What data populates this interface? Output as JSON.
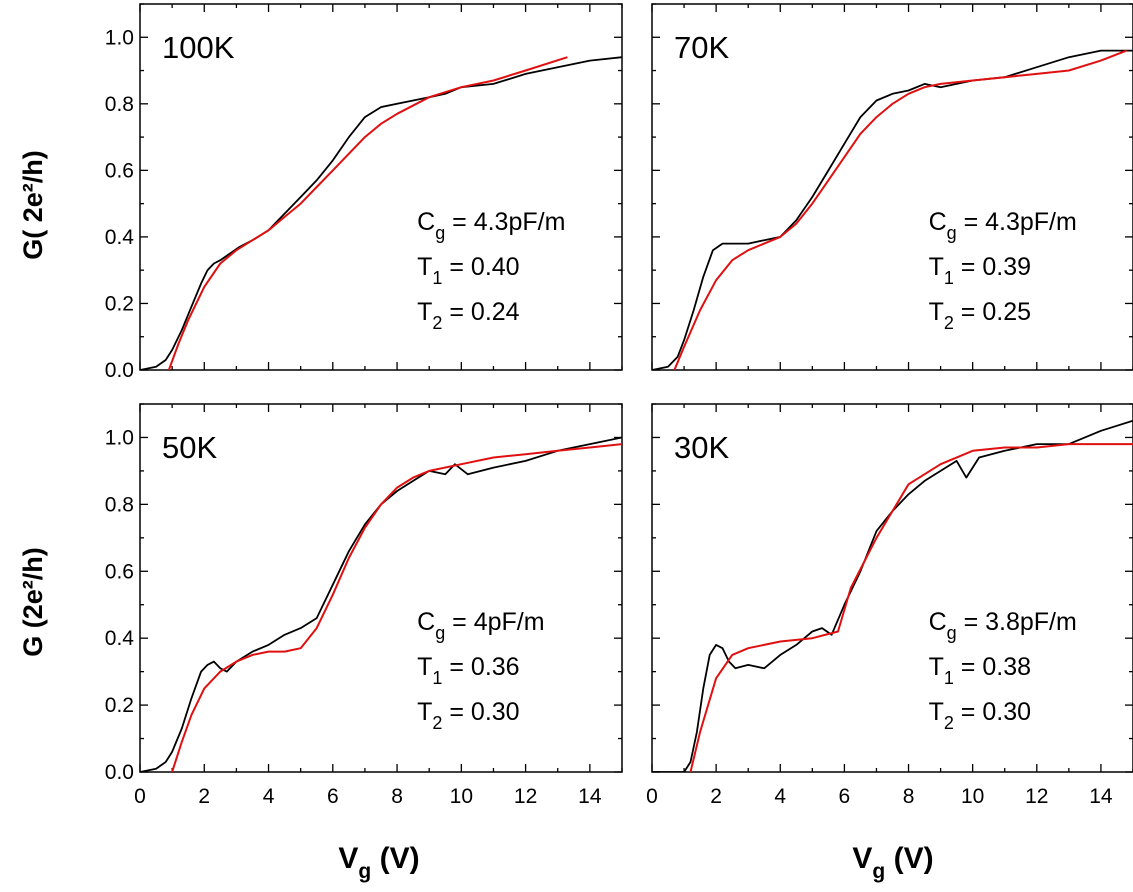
{
  "figure": {
    "ylabel_top": "G( 2e²/h)",
    "ylabel_bottom": "G (2e²/h)",
    "xlabel_main": "V",
    "xlabel_sub": "g",
    "xlabel_unit": " (V)"
  },
  "colors": {
    "data": "#000000",
    "fit": "#e01010",
    "frame": "#000000"
  },
  "chart_data": [
    {
      "type": "line",
      "panel": "top-left",
      "label": "100K",
      "xlim": [
        0,
        15
      ],
      "ylim": [
        0,
        1.1
      ],
      "yticks": [
        "0.0",
        "0.2",
        "0.4",
        "0.6",
        "0.8",
        "1.0"
      ],
      "xticks": [],
      "annotations": [
        {
          "main": "C",
          "sub": "g",
          "rest": " = 4.3pF/m"
        },
        {
          "main": "T",
          "sub": "1",
          "rest": " = 0.40"
        },
        {
          "main": "T",
          "sub": "2",
          "rest": " = 0.24"
        }
      ],
      "series": [
        {
          "role": "data",
          "x": [
            0,
            0.5,
            0.8,
            1.0,
            1.3,
            1.6,
            1.9,
            2.1,
            2.3,
            2.5,
            2.8,
            3.1,
            3.5,
            4.0,
            4.5,
            5.0,
            5.5,
            6.0,
            6.5,
            7.0,
            7.5,
            8.0,
            8.5,
            9.0,
            9.5,
            10.0,
            11.0,
            12.0,
            13.0,
            14.0,
            15.0
          ],
          "y": [
            0.0,
            0.01,
            0.03,
            0.06,
            0.12,
            0.19,
            0.26,
            0.3,
            0.32,
            0.33,
            0.35,
            0.37,
            0.39,
            0.42,
            0.47,
            0.52,
            0.57,
            0.63,
            0.7,
            0.76,
            0.79,
            0.8,
            0.81,
            0.82,
            0.83,
            0.85,
            0.86,
            0.89,
            0.91,
            0.93,
            0.94
          ]
        },
        {
          "role": "fit",
          "x": [
            0.9,
            1.2,
            1.5,
            2.0,
            2.5,
            3.0,
            3.5,
            4.0,
            4.5,
            5.0,
            5.5,
            6.0,
            6.5,
            7.0,
            7.5,
            8.0,
            9.0,
            10.0,
            11.0,
            12.0,
            13.3
          ],
          "y": [
            0.0,
            0.08,
            0.15,
            0.25,
            0.32,
            0.36,
            0.39,
            0.42,
            0.46,
            0.5,
            0.55,
            0.6,
            0.65,
            0.7,
            0.74,
            0.77,
            0.82,
            0.85,
            0.87,
            0.9,
            0.94
          ]
        }
      ]
    },
    {
      "type": "line",
      "panel": "top-right",
      "label": "70K",
      "xlim": [
        0,
        15
      ],
      "ylim": [
        0,
        1.1
      ],
      "yticks": [],
      "xticks": [],
      "annotations": [
        {
          "main": "C",
          "sub": "g",
          "rest": " = 4.3pF/m"
        },
        {
          "main": "T",
          "sub": "1",
          "rest": " = 0.39"
        },
        {
          "main": "T",
          "sub": "2",
          "rest": " = 0.25"
        }
      ],
      "series": [
        {
          "role": "data",
          "x": [
            0,
            0.5,
            0.8,
            1.0,
            1.3,
            1.6,
            1.9,
            2.2,
            2.5,
            3.0,
            3.5,
            4.0,
            4.5,
            5.0,
            5.5,
            6.0,
            6.5,
            7.0,
            7.5,
            8.0,
            8.5,
            9.0,
            9.5,
            10.0,
            11.0,
            12.0,
            13.0,
            14.0,
            15.0
          ],
          "y": [
            0.0,
            0.01,
            0.04,
            0.09,
            0.18,
            0.28,
            0.36,
            0.38,
            0.38,
            0.38,
            0.39,
            0.4,
            0.45,
            0.52,
            0.6,
            0.68,
            0.76,
            0.81,
            0.83,
            0.84,
            0.86,
            0.85,
            0.86,
            0.87,
            0.88,
            0.91,
            0.94,
            0.96,
            0.96
          ]
        },
        {
          "role": "fit",
          "x": [
            0.7,
            1.0,
            1.5,
            2.0,
            2.5,
            3.0,
            3.5,
            4.0,
            4.5,
            5.0,
            5.5,
            6.0,
            6.5,
            7.0,
            7.5,
            8.0,
            8.5,
            9.0,
            10.0,
            11.0,
            12.0,
            13.0,
            14.0,
            14.8
          ],
          "y": [
            0.0,
            0.07,
            0.18,
            0.27,
            0.33,
            0.36,
            0.38,
            0.4,
            0.44,
            0.5,
            0.57,
            0.64,
            0.71,
            0.76,
            0.8,
            0.83,
            0.85,
            0.86,
            0.87,
            0.88,
            0.89,
            0.9,
            0.93,
            0.96
          ]
        }
      ]
    },
    {
      "type": "line",
      "panel": "bottom-left",
      "label": "50K",
      "xlim": [
        0,
        15
      ],
      "ylim": [
        0,
        1.1
      ],
      "yticks": [
        "0.0",
        "0.2",
        "0.4",
        "0.6",
        "0.8",
        "1.0"
      ],
      "xticks": [
        "0",
        "2",
        "4",
        "6",
        "8",
        "10",
        "12",
        "14"
      ],
      "annotations": [
        {
          "main": "C",
          "sub": "g",
          "rest": " = 4pF/m"
        },
        {
          "main": "T",
          "sub": "1",
          "rest": " = 0.36"
        },
        {
          "main": "T",
          "sub": "2",
          "rest": " = 0.30"
        }
      ],
      "series": [
        {
          "role": "data",
          "x": [
            0,
            0.5,
            0.8,
            1.0,
            1.3,
            1.6,
            1.9,
            2.1,
            2.3,
            2.5,
            2.7,
            3.0,
            3.5,
            4.0,
            4.5,
            5.0,
            5.5,
            6.0,
            6.5,
            7.0,
            7.5,
            8.0,
            8.5,
            9.0,
            9.5,
            9.8,
            10.2,
            11.0,
            12.0,
            13.0,
            14.0,
            15.0
          ],
          "y": [
            0.0,
            0.01,
            0.03,
            0.06,
            0.13,
            0.22,
            0.3,
            0.32,
            0.33,
            0.31,
            0.3,
            0.33,
            0.36,
            0.38,
            0.41,
            0.43,
            0.46,
            0.56,
            0.66,
            0.74,
            0.8,
            0.84,
            0.87,
            0.9,
            0.89,
            0.92,
            0.89,
            0.91,
            0.93,
            0.96,
            0.98,
            1.0
          ]
        },
        {
          "role": "fit",
          "x": [
            1.0,
            1.3,
            1.6,
            2.0,
            2.5,
            3.0,
            3.5,
            4.0,
            4.5,
            5.0,
            5.5,
            6.0,
            6.5,
            7.0,
            7.5,
            8.0,
            8.5,
            9.0,
            10.0,
            11.0,
            12.0,
            13.0,
            14.0,
            15.0
          ],
          "y": [
            0.0,
            0.09,
            0.17,
            0.25,
            0.3,
            0.33,
            0.35,
            0.36,
            0.36,
            0.37,
            0.43,
            0.53,
            0.64,
            0.73,
            0.8,
            0.85,
            0.88,
            0.9,
            0.92,
            0.94,
            0.95,
            0.96,
            0.97,
            0.98
          ]
        }
      ]
    },
    {
      "type": "line",
      "panel": "bottom-right",
      "label": "30K",
      "xlim": [
        0,
        15
      ],
      "ylim": [
        0,
        1.1
      ],
      "yticks": [],
      "xticks": [
        "0",
        "2",
        "4",
        "6",
        "8",
        "10",
        "12",
        "14"
      ],
      "annotations": [
        {
          "main": "C",
          "sub": "g",
          "rest": " = 3.8pF/m"
        },
        {
          "main": "T",
          "sub": "1",
          "rest": " = 0.38"
        },
        {
          "main": "T",
          "sub": "2",
          "rest": " = 0.30"
        }
      ],
      "series": [
        {
          "role": "data",
          "x": [
            0,
            0.5,
            1.0,
            1.2,
            1.4,
            1.6,
            1.8,
            2.0,
            2.2,
            2.4,
            2.6,
            3.0,
            3.5,
            4.0,
            4.5,
            5.0,
            5.3,
            5.6,
            6.0,
            6.5,
            7.0,
            7.5,
            8.0,
            8.5,
            9.0,
            9.5,
            9.8,
            10.2,
            11.0,
            12.0,
            13.0,
            14.0,
            15.0
          ],
          "y": [
            0.0,
            0.0,
            0.0,
            0.03,
            0.12,
            0.25,
            0.35,
            0.38,
            0.37,
            0.33,
            0.31,
            0.32,
            0.31,
            0.35,
            0.38,
            0.42,
            0.43,
            0.41,
            0.5,
            0.6,
            0.72,
            0.78,
            0.83,
            0.87,
            0.9,
            0.93,
            0.88,
            0.94,
            0.96,
            0.98,
            0.98,
            1.02,
            1.05
          ]
        },
        {
          "role": "fit",
          "x": [
            1.2,
            1.5,
            2.0,
            2.5,
            3.0,
            4.0,
            5.0,
            5.8,
            6.2,
            7.0,
            8.0,
            9.0,
            10.0,
            11.0,
            12.0,
            13.0,
            14.0,
            15.0
          ],
          "y": [
            0.0,
            0.12,
            0.28,
            0.35,
            0.37,
            0.39,
            0.4,
            0.42,
            0.55,
            0.7,
            0.86,
            0.92,
            0.96,
            0.97,
            0.97,
            0.98,
            0.98,
            0.98
          ]
        }
      ]
    }
  ]
}
